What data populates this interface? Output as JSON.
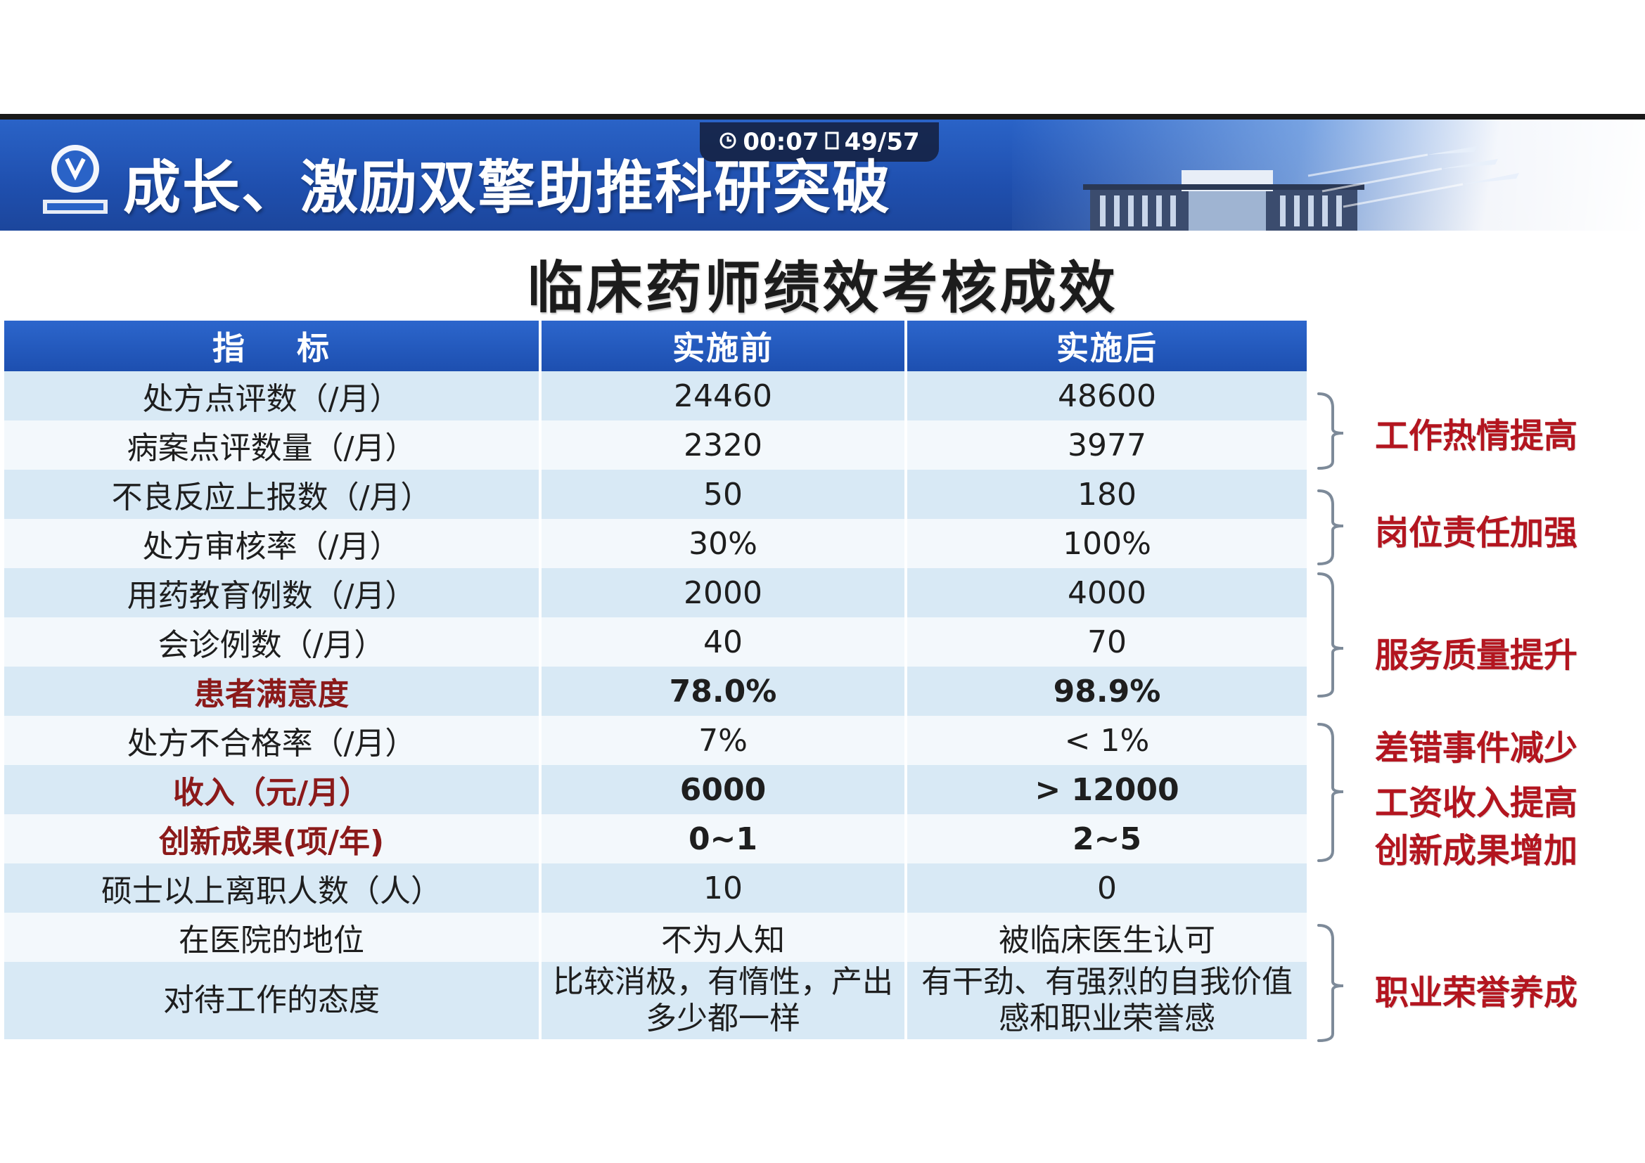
{
  "slide": {
    "title": "成长、激励双擎助推科研突破",
    "subtitle": "临床药师绩效考核成效"
  },
  "player": {
    "time": "00:07",
    "page": "49/57",
    "icons": [
      "clock-icon",
      "page-icon"
    ]
  },
  "table": {
    "headers": [
      "指    标",
      "实施前",
      "实施后"
    ],
    "rows": [
      {
        "indicator": "处方点评数（/月）",
        "before": "24460",
        "after": "48600",
        "emphasis": false
      },
      {
        "indicator": "病案点评数量（/月）",
        "before": "2320",
        "after": "3977",
        "emphasis": false
      },
      {
        "indicator": "不良反应上报数（/月）",
        "before": "50",
        "after": "180",
        "emphasis": false
      },
      {
        "indicator": "处方审核率（/月）",
        "before": "30%",
        "after": "100%",
        "emphasis": false
      },
      {
        "indicator": "用药教育例数（/月）",
        "before": "2000",
        "after": "4000",
        "emphasis": false
      },
      {
        "indicator": "会诊例数（/月）",
        "before": "40",
        "after": "70",
        "emphasis": false
      },
      {
        "indicator": "患者满意度",
        "before": "78.0%",
        "after": "98.9%",
        "emphasis": true
      },
      {
        "indicator": "处方不合格率（/月）",
        "before": "7%",
        "after": "< 1%",
        "emphasis": false
      },
      {
        "indicator": "收入（元/月）",
        "before": "6000",
        "after": "> 12000",
        "emphasis": true
      },
      {
        "indicator": "创新成果(项/年)",
        "before": "0~1",
        "after": "2~5",
        "emphasis": true
      },
      {
        "indicator": "硕士以上离职人数（人）",
        "before": "10",
        "after": "0",
        "emphasis": false
      },
      {
        "indicator": "在医院的地位",
        "before": "不为人知",
        "after": "被临床医生认可",
        "emphasis": false
      },
      {
        "indicator": "对待工作的态度",
        "before": "比较消极，有惰性，产出多少都一样",
        "after": "有干劲、有强烈的自我价值感和职业荣誉感",
        "emphasis": false
      }
    ]
  },
  "annotations": [
    "工作热情提高",
    "岗位责任加强",
    "服务质量提升",
    "差错事件减少",
    "工资收入提高",
    "创新成果增加",
    "职业荣誉养成"
  ],
  "colors": {
    "header_blue": "#1f4fae",
    "row_light_blue": "#d8e9f5",
    "row_white": "#f3f8fc",
    "annotation_red": "#b3151f",
    "emphasis_dark_red": "#8b1a1a"
  },
  "logo": "hospital-logo"
}
